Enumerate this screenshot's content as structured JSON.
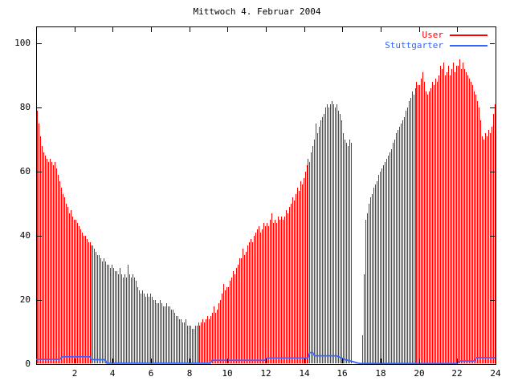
{
  "title": "Mittwoch 4. Februar 2004",
  "colors": {
    "user_series": "#ff0000",
    "stuttgarter_series": "#3366ff",
    "frame": "#000000",
    "background": "#ffffff"
  },
  "legend": [
    {
      "label": "User",
      "color": "#ff0000"
    },
    {
      "label": "Stuttgarter",
      "color": "#3366ff"
    }
  ],
  "chart_data": {
    "type": "bar",
    "title": "Mittwoch 4. Februar 2004",
    "xlabel": "",
    "ylabel": "",
    "xlim": [
      0,
      24
    ],
    "ylim": [
      0,
      105
    ],
    "x_ticks": [
      2,
      4,
      6,
      8,
      10,
      12,
      14,
      16,
      18,
      20,
      22,
      24
    ],
    "y_ticks": [
      0,
      20,
      40,
      60,
      80,
      100
    ],
    "grid": false,
    "legend_position": "top-right",
    "series": [
      {
        "name": "User",
        "style": "impulses",
        "color": "#ff0000",
        "start_hour": 0.0417,
        "step_hours": 0.0833,
        "note": "one value per 5 minutes; nulls = data gap 16:30-17:00",
        "values": [
          79,
          75,
          71,
          68,
          66,
          65,
          64,
          63,
          64,
          63,
          62,
          63,
          61,
          59,
          57,
          55,
          53,
          52,
          50,
          49,
          47,
          48,
          46,
          45,
          45,
          44,
          43,
          42,
          41,
          40,
          40,
          39,
          38,
          38,
          37,
          37,
          36,
          35,
          34,
          34,
          33,
          32,
          33,
          32,
          31,
          31,
          30,
          31,
          30,
          29,
          29,
          28,
          30,
          28,
          27,
          28,
          27,
          31,
          28,
          27,
          28,
          27,
          26,
          24,
          23,
          22,
          23,
          22,
          21,
          22,
          21,
          22,
          21,
          20,
          20,
          19,
          19,
          20,
          19,
          18,
          18,
          19,
          18,
          18,
          17,
          17,
          16,
          15,
          15,
          14,
          14,
          13,
          13,
          14,
          12,
          12,
          12,
          11,
          11,
          12,
          12,
          13,
          12,
          13,
          14,
          13,
          14,
          15,
          14,
          15,
          16,
          18,
          16,
          17,
          19,
          20,
          22,
          25,
          23,
          24,
          24,
          26,
          27,
          29,
          28,
          30,
          31,
          33,
          33,
          36,
          34,
          35,
          37,
          38,
          39,
          38,
          40,
          41,
          42,
          43,
          41,
          42,
          44,
          43,
          44,
          43,
          45,
          47,
          44,
          45,
          44,
          46,
          45,
          46,
          45,
          46,
          48,
          47,
          49,
          50,
          52,
          51,
          53,
          55,
          54,
          57,
          56,
          58,
          60,
          62,
          64,
          63,
          66,
          68,
          70,
          75,
          72,
          74,
          76,
          77,
          78,
          80,
          81,
          80,
          81,
          82,
          81,
          80,
          81,
          79,
          78,
          76,
          72,
          70,
          69,
          68,
          70,
          69,
          null,
          null,
          null,
          null,
          null,
          null,
          9,
          28,
          45,
          47,
          50,
          52,
          53,
          55,
          56,
          57,
          59,
          60,
          61,
          62,
          63,
          64,
          65,
          66,
          67,
          69,
          70,
          72,
          73,
          74,
          75,
          76,
          77,
          79,
          80,
          82,
          83,
          85,
          84,
          86,
          88,
          87,
          87,
          89,
          91,
          88,
          85,
          84,
          85,
          86,
          88,
          87,
          89,
          88,
          90,
          93,
          92,
          94,
          90,
          91,
          93,
          90,
          92,
          94,
          91,
          93,
          93,
          95,
          92,
          94,
          92,
          91,
          90,
          89,
          88,
          87,
          85,
          84,
          82,
          80,
          76,
          71,
          70,
          72,
          71,
          73,
          72,
          74,
          78,
          81
        ]
      },
      {
        "name": "Stuttgarter",
        "style": "line",
        "color": "#3366ff",
        "points": [
          [
            0,
            1.5
          ],
          [
            1.25,
            1.5
          ],
          [
            1.35,
            2.3
          ],
          [
            2.8,
            2.3
          ],
          [
            2.9,
            1.4
          ],
          [
            3.6,
            1.4
          ],
          [
            3.7,
            0.3
          ],
          [
            9.1,
            0.3
          ],
          [
            9.2,
            1.2
          ],
          [
            11.95,
            1.2
          ],
          [
            12.05,
            1.9
          ],
          [
            14.2,
            1.9
          ],
          [
            14.3,
            3.6
          ],
          [
            14.45,
            3.6
          ],
          [
            14.55,
            2.6
          ],
          [
            15.7,
            2.6
          ],
          [
            16.1,
            1.5
          ],
          [
            16.9,
            0.2
          ],
          [
            22.0,
            0.2
          ],
          [
            22.15,
            1.0
          ],
          [
            22.9,
            1.0
          ],
          [
            23.0,
            2.0
          ],
          [
            24,
            2.0
          ]
        ]
      }
    ]
  }
}
